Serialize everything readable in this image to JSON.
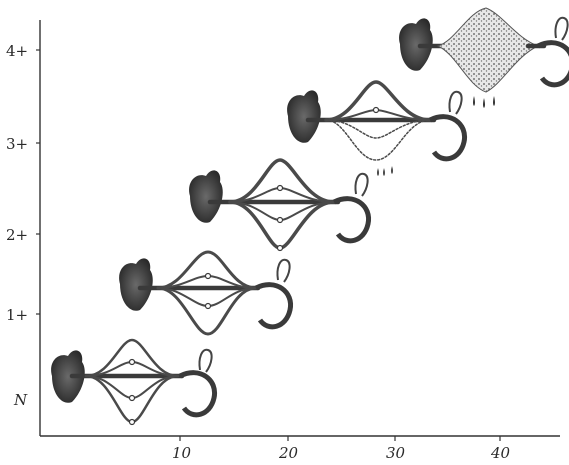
{
  "y_labels": [
    "4+",
    "3+",
    "2+",
    "1+",
    "N"
  ],
  "x_labels": [
    "10",
    "20",
    "30",
    "40"
  ]
}
